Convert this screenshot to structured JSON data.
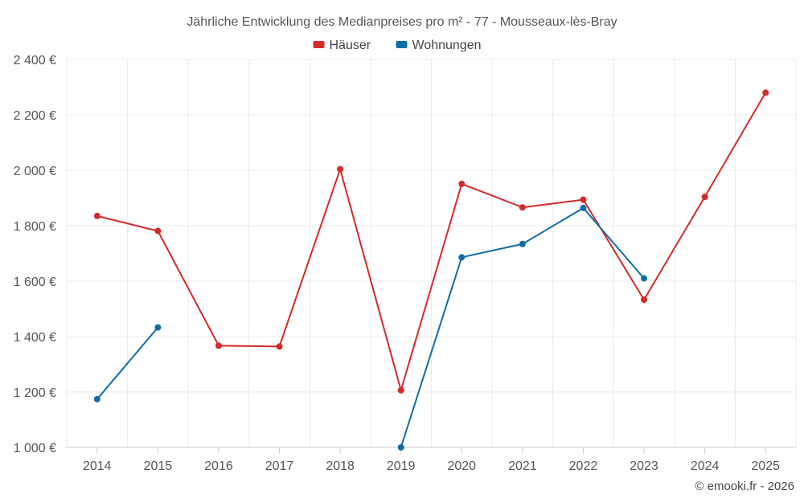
{
  "chart_data": {
    "type": "line",
    "title": "Jährliche Entwicklung des Medianpreises pro m² - 77 - Mousseaux-lès-Bray",
    "categories": [
      "2014",
      "2015",
      "2016",
      "2017",
      "2018",
      "2019",
      "2020",
      "2021",
      "2022",
      "2023",
      "2024",
      "2025"
    ],
    "series": [
      {
        "name": "Häuser",
        "color": "#d42a2a",
        "values": [
          1835,
          1781,
          1367,
          1364,
          2004,
          1206,
          1951,
          1866,
          1894,
          1533,
          1904,
          2280
        ]
      },
      {
        "name": "Wohnungen",
        "color": "#0f6da3",
        "values": [
          1174,
          1433,
          null,
          null,
          null,
          1000,
          1686,
          1734,
          1864,
          1610,
          null,
          null
        ]
      }
    ],
    "ylim": [
      1000,
      2400
    ],
    "yticks": [
      1000,
      1200,
      1400,
      1600,
      1800,
      2000,
      2200,
      2400
    ],
    "ytick_labels": [
      "1 000 €",
      "1 200 €",
      "1 400 €",
      "1 600 €",
      "1 800 €",
      "2 000 €",
      "2 200 €",
      "2 400 €"
    ],
    "xlabel": "",
    "ylabel": "",
    "legend_position": "top-center",
    "grid": true
  },
  "credit": "© emooki.fr - 2026"
}
